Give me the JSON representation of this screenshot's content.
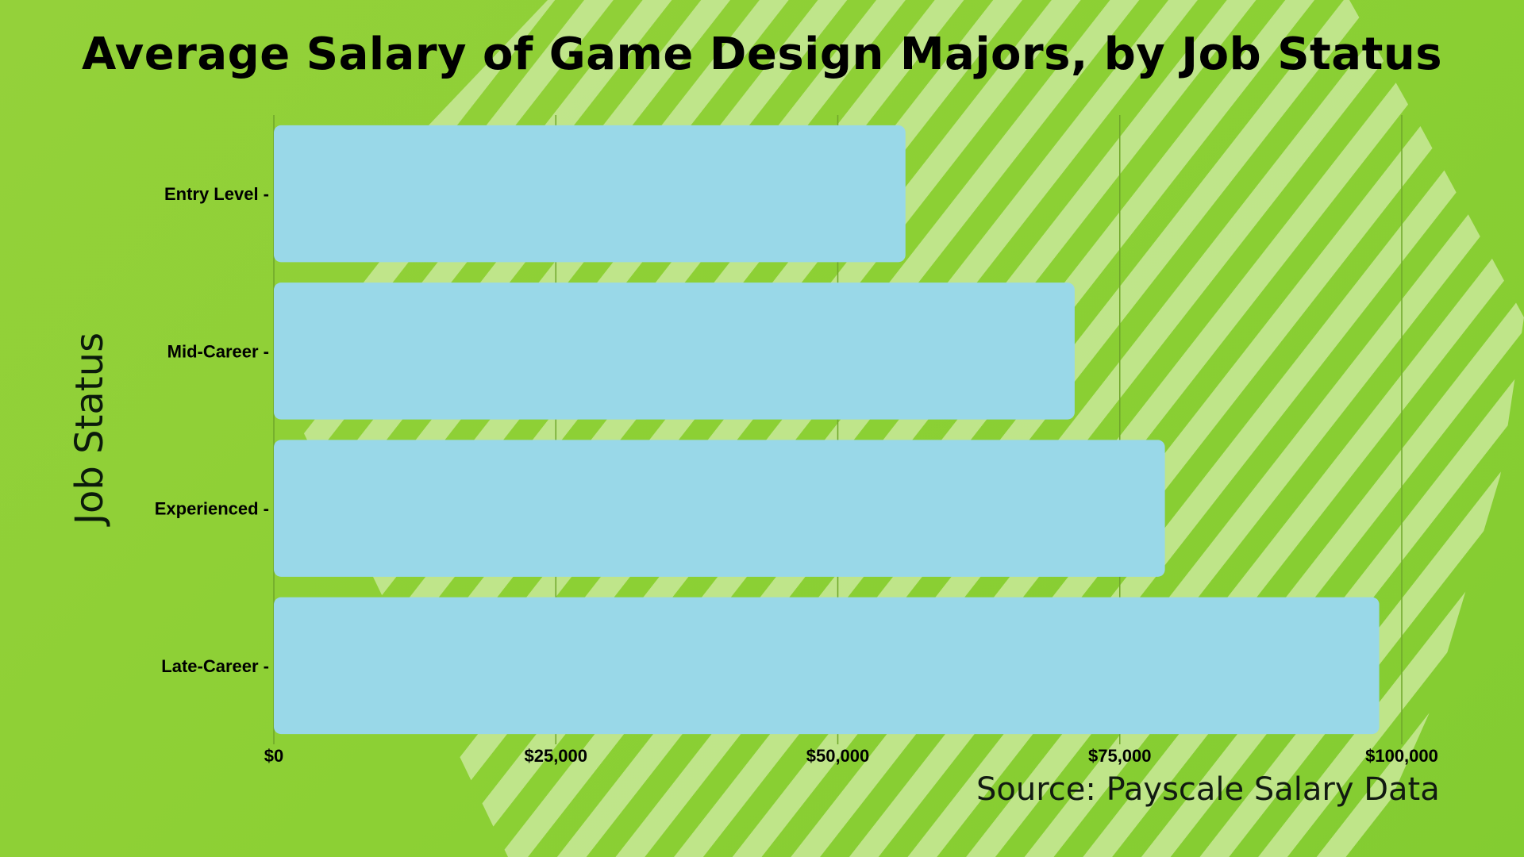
{
  "chart_data": {
    "type": "bar",
    "orientation": "horizontal",
    "title": "Average Salary of Game Design Majors, by Job Status",
    "ylabel": "Job Status",
    "xlabel": "",
    "categories": [
      "Entry Level",
      "Mid-Career",
      "Experienced",
      "Late-Career"
    ],
    "category_tick_labels": [
      "Entry Level -",
      "Mid-Career -",
      "Experienced -",
      "Late-Career -"
    ],
    "values": [
      56000,
      71000,
      79000,
      98000
    ],
    "xlim": [
      0,
      100000
    ],
    "x_ticks": [
      0,
      25000,
      50000,
      75000,
      100000
    ],
    "x_tick_labels": [
      "$0",
      "$25,000",
      "$50,000",
      "$75,000",
      "$100,000"
    ],
    "grid": "vertical",
    "legend": "none",
    "annotation": "Source: Payscale Salary Data",
    "colors": {
      "bar": "#99d8e8",
      "background": "#8cd034",
      "stripes": "#c2e68e",
      "gridline": "#6fa62a",
      "text": "#000000"
    }
  }
}
